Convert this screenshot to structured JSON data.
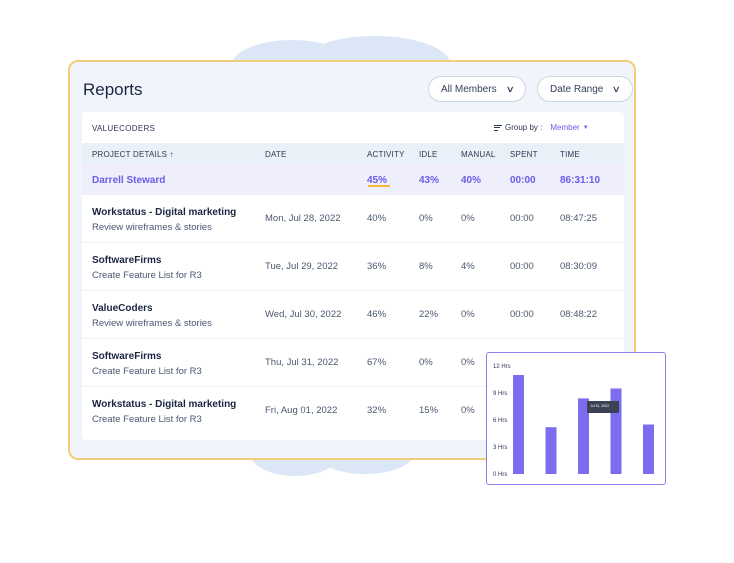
{
  "header": {
    "title": "Reports"
  },
  "filters": {
    "members_label": "All Members",
    "date_range_label": "Date Range"
  },
  "table": {
    "company": "VALUECODERS",
    "group_by_label": "Group by :",
    "group_by_value": "Member",
    "columns": {
      "project": "PROJECT DETAILS ↑",
      "date": "DATE",
      "activity": "ACTIVITY",
      "idle": "IDLE",
      "manual": "MANUAL",
      "spent": "SPENT",
      "time": "TIME"
    },
    "member_summary": {
      "name": "Darrell Steward",
      "activity": "45%",
      "idle": "43%",
      "manual": "40%",
      "spent": "00:00",
      "time": "86:31:10"
    },
    "rows": [
      {
        "project": "Workstatus - Digital marketing",
        "task": "Review wireframes & stories",
        "date": "Mon, Jul 28, 2022",
        "activity": "40%",
        "idle": "0%",
        "manual": "0%",
        "spent": "00:00",
        "time": "08:47:25"
      },
      {
        "project": "SoftwareFirms",
        "task": "Create Feature List for R3",
        "date": "Tue, Jul 29, 2022",
        "activity": "36%",
        "idle": "8%",
        "manual": "4%",
        "spent": "00:00",
        "time": "08:30:09"
      },
      {
        "project": "ValueCoders",
        "task": "Review wireframes & stories",
        "date": "Wed, Jul 30, 2022",
        "activity": "46%",
        "idle": "22%",
        "manual": "0%",
        "spent": "00:00",
        "time": "08:48:22"
      },
      {
        "project": "SoftwareFirms",
        "task": "Create Feature List for R3",
        "date": "Thu, Jul 31, 2022",
        "activity": "67%",
        "idle": "0%",
        "manual": "0%"
      },
      {
        "project": "Workstatus - Digital marketing",
        "task": "Create Feature List for R3",
        "date": "Fri, Aug 01, 2022",
        "activity": "32%",
        "idle": "15%",
        "manual": "0%"
      }
    ]
  },
  "colors": {
    "accent": "#6c5ce7",
    "bar": "#7b6cf0",
    "card_border": "#f5cd7a",
    "underline": "#f5b642"
  },
  "chart_data": {
    "type": "bar",
    "title": "",
    "ylabel": "",
    "yticks": [
      "0 Hrs",
      "3 Hrs",
      "6 Hrs",
      "9 Hrs",
      "12 Hrs"
    ],
    "ylim": [
      0,
      12
    ],
    "values": [
      11,
      5.2,
      8.4,
      9.5,
      5.5
    ],
    "tooltip_text": "Jul 31, 2022"
  }
}
